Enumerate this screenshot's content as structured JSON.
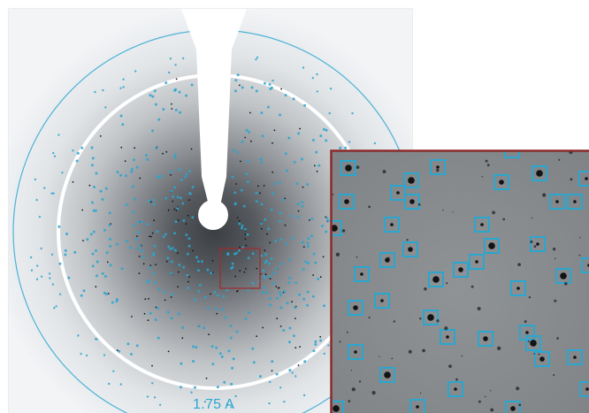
{
  "image": {
    "subject": "x-ray-diffraction-pattern",
    "resolution_ring_label": "1.75 A",
    "colors": {
      "spot_marker": "#2aa6cf",
      "inset_border": "#8b2a2a",
      "beamstop": "#ffffff",
      "background_inset": "#8a8e90"
    }
  }
}
